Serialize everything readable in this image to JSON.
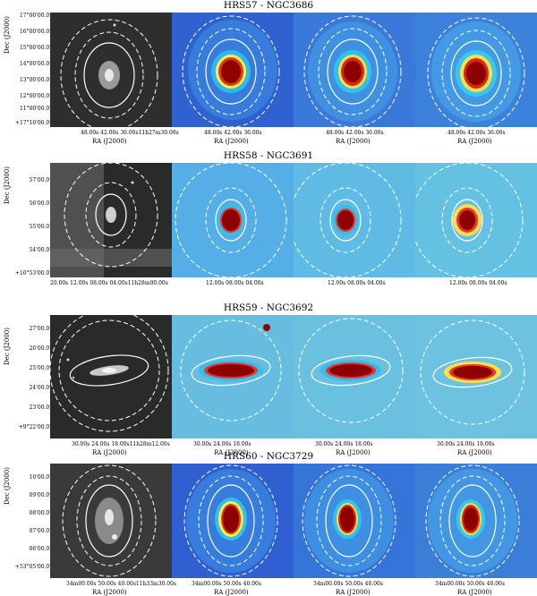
{
  "figure": {
    "ylabel": "Dec (J2000)",
    "xlabel": "RA (J2000)",
    "colors": {
      "optical_bg": "#3a3a3a",
      "map_bg": "#3f8fd6",
      "core": "#8c0000",
      "ring": "#ffffff"
    }
  },
  "rows": [
    {
      "title": "HRS57 - NGC3686",
      "yticks": [
        "17°00'00.0\"",
        "16°00'00.0\"",
        "15°00'00.0\"",
        "14°00'00.0\"",
        "13°00'00.0\"",
        "12°00'00.0\"",
        "11°00'00.0\"",
        "+17°10'00.0\""
      ],
      "xticks_optical": "48.00s   42.00s   36.00s11h27m30.00s",
      "xticks_map": "48.00s   42.00s   36.00s"
    },
    {
      "title": "HRS58 - NGC3691",
      "yticks": [
        "57'00.0\"",
        "56'00.0\"",
        "55'00.0\"",
        "54'00.0\"",
        "+16°53'00.0\""
      ],
      "xticks_optical": "20.00s        12.00s   08.00s   04.00s11h28m00.00s",
      "xticks_map": "12.00s   08.00s   04.00s"
    },
    {
      "title": "HRS59 - NGC3692",
      "yticks": [
        "27'00.0\"",
        "26'00.0\"",
        "25'00.0\"",
        "24'00.0\"",
        "23'00.0\"",
        "+9°22'00.0\""
      ],
      "xticks_optical": "30.00s   24.00s   18.00s11h28m12.00s",
      "xticks_map": "30.00s   24.00s   18.00s"
    },
    {
      "title": "HRS60 - NGC3729",
      "yticks": [
        "10'00.0\"",
        "09'00.0\"",
        "08'00.0\"",
        "07'00.0\"",
        "06'00.0\"",
        "+53°05'00.0\""
      ],
      "xticks_optical": "34m00.00s   50.00s   40.00s11h33m30.00s",
      "xticks_map": "34m00.00s   50.00s   40.00s"
    }
  ]
}
